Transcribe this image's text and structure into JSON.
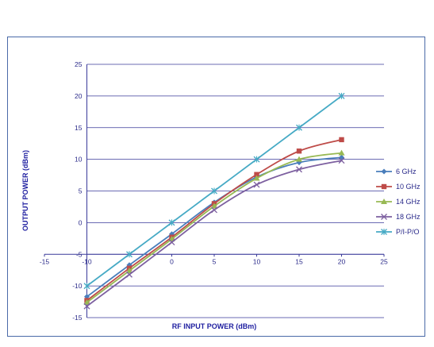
{
  "chart_data": {
    "type": "line",
    "title": "",
    "xlabel": "RF INPUT POWER (dBm)",
    "ylabel": "OUTPUT POWER (dBm)",
    "xlim": [
      -15,
      25
    ],
    "ylim": [
      -15,
      25
    ],
    "x_ticks": [
      -15,
      -10,
      0,
      5,
      10,
      15,
      20,
      25
    ],
    "y_ticks": [
      25,
      20,
      15,
      10,
      5,
      0,
      -5,
      -10,
      -15
    ],
    "x_tick_labels": [
      "-15",
      "-10",
      "0",
      "5",
      "10",
      "15",
      "20",
      "25"
    ],
    "y_tick_labels": [
      "25",
      "20",
      "15",
      "10",
      "5",
      "0",
      "-5",
      "-10",
      "-15"
    ],
    "x_axis_at_y": -5,
    "y_axis_at_x": -10,
    "grid": "horizontal",
    "legend_position": "right",
    "x": [
      -10,
      -5,
      0,
      5,
      10,
      15,
      20
    ],
    "series": [
      {
        "name": "6 GHz",
        "color": "#4a7ebb",
        "marker": "diamond",
        "values": [
          -11.7,
          -6.7,
          -1.8,
          3.2,
          7.2,
          9.5,
          10.3
        ]
      },
      {
        "name": "10 GHz",
        "color": "#be4b48",
        "marker": "square",
        "values": [
          -12.3,
          -7.2,
          -2.3,
          3.0,
          7.6,
          11.3,
          13.1
        ]
      },
      {
        "name": "14 GHz",
        "color": "#98b954",
        "marker": "triangle",
        "values": [
          -12.6,
          -7.6,
          -2.6,
          2.6,
          7.0,
          10.0,
          11.0
        ]
      },
      {
        "name": "18 GHz",
        "color": "#7d60a0",
        "marker": "x",
        "values": [
          -13.2,
          -8.2,
          -3.1,
          2.0,
          6.0,
          8.4,
          9.8
        ]
      },
      {
        "name": "P/I-P/O",
        "color": "#46aac5",
        "marker": "star",
        "values": [
          -10,
          -5,
          0,
          5,
          10,
          15,
          20
        ]
      }
    ]
  }
}
